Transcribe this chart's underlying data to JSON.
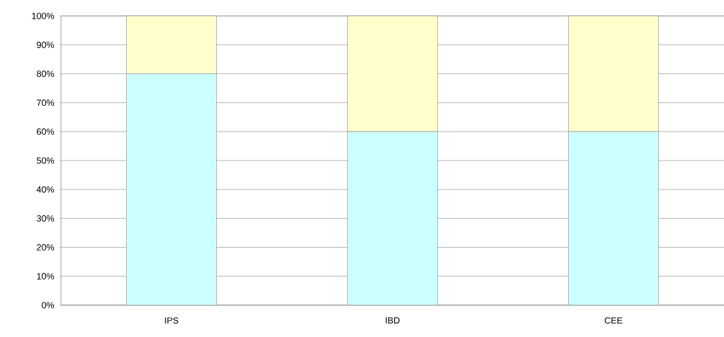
{
  "chart_data": {
    "type": "bar",
    "stacked": true,
    "categories": [
      "IPS",
      "IBD",
      "CEE"
    ],
    "series": [
      {
        "color": "#ccffff",
        "values": [
          80,
          60,
          60
        ]
      },
      {
        "color": "#ffffcc",
        "values": [
          20,
          40,
          40
        ]
      }
    ],
    "ylim": [
      0,
      100
    ],
    "yticks": [
      {
        "value": 0,
        "label": "0%"
      },
      {
        "value": 10,
        "label": "10%"
      },
      {
        "value": 20,
        "label": "20%"
      },
      {
        "value": 30,
        "label": "30%"
      },
      {
        "value": 40,
        "label": "40%"
      },
      {
        "value": 50,
        "label": "50%"
      },
      {
        "value": 60,
        "label": "60%"
      },
      {
        "value": 70,
        "label": "70%"
      },
      {
        "value": 80,
        "label": "80%"
      },
      {
        "value": 90,
        "label": "90%"
      },
      {
        "value": 100,
        "label": "100%"
      }
    ],
    "grid": "y"
  }
}
